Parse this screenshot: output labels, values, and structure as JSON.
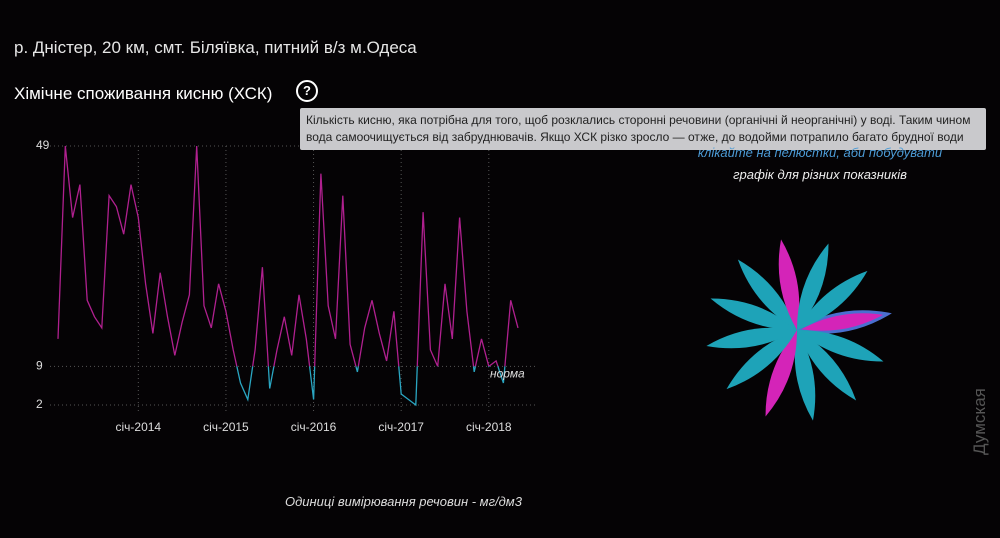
{
  "header": {
    "location": "р. Дністер, 20 км, смт. Біляївка, питний в/з м.Одеса"
  },
  "chart_data": {
    "type": "line",
    "title": "Хімічне споживання кисню (ХСК)",
    "description": "Кількість кисню, яка потрібна для того, щоб розклались сторонні речовини (органічні й неорганічні) у воді. Таким чином вода самоочищується від забруднювачів. Якщо ХСК різко зросло — отже, до водойми потрапило багато брудної води",
    "x": [
      "2013-02",
      "2013-03",
      "2013-04",
      "2013-05",
      "2013-06",
      "2013-07",
      "2013-08",
      "2013-09",
      "2013-10",
      "2013-11",
      "2013-12",
      "2014-01",
      "2014-02",
      "2014-03",
      "2014-04",
      "2014-05",
      "2014-06",
      "2014-07",
      "2014-08",
      "2014-09",
      "2014-10",
      "2014-11",
      "2014-12",
      "2015-01",
      "2015-02",
      "2015-03",
      "2015-04",
      "2015-05",
      "2015-06",
      "2015-07",
      "2015-08",
      "2015-09",
      "2015-10",
      "2015-11",
      "2015-12",
      "2016-01",
      "2016-02",
      "2016-03",
      "2016-04",
      "2016-05",
      "2016-06",
      "2016-07",
      "2016-08",
      "2016-09",
      "2016-10",
      "2016-11",
      "2016-12",
      "2017-01",
      "2017-02",
      "2017-03",
      "2017-04",
      "2017-05",
      "2017-06",
      "2017-07",
      "2017-08",
      "2017-09",
      "2017-10",
      "2017-11",
      "2017-12",
      "2018-01",
      "2018-02",
      "2018-03",
      "2018-04",
      "2018-05"
    ],
    "values": [
      14,
      49,
      36,
      42,
      21,
      18,
      16,
      40,
      38,
      33,
      42,
      36,
      24,
      15,
      26,
      18,
      11,
      17,
      22,
      49,
      20,
      16,
      24,
      19,
      12,
      6,
      3,
      12,
      27,
      5,
      12,
      18,
      11,
      22,
      14,
      3,
      44,
      20,
      14,
      40,
      13,
      8,
      16,
      21,
      15,
      10,
      19,
      4,
      3,
      2,
      37,
      12,
      9,
      24,
      14,
      36,
      19,
      8,
      14,
      9,
      10,
      6,
      21,
      16
    ],
    "color": "#b0208f",
    "below_norm_color": "#2aa6c2",
    "xlim": [
      "2013-02",
      "2018-05"
    ],
    "xticks": [
      {
        "value": "2014-01",
        "label": "січ-2014"
      },
      {
        "value": "2015-01",
        "label": "січ-2015"
      },
      {
        "value": "2016-01",
        "label": "січ-2016"
      },
      {
        "value": "2017-01",
        "label": "січ-2017"
      },
      {
        "value": "2018-01",
        "label": "січ-2018"
      }
    ],
    "ylim": [
      2,
      49
    ],
    "yticks": [
      2,
      9,
      49
    ],
    "norm": {
      "value": 9,
      "label": "норма"
    },
    "grid": true,
    "hint": "клікайте на пелюстки, аби побудувати",
    "hint2": "графік для різних показників",
    "units": "Одиниці вимірювання речовин - мг/дм3"
  },
  "watermark": "Думская"
}
